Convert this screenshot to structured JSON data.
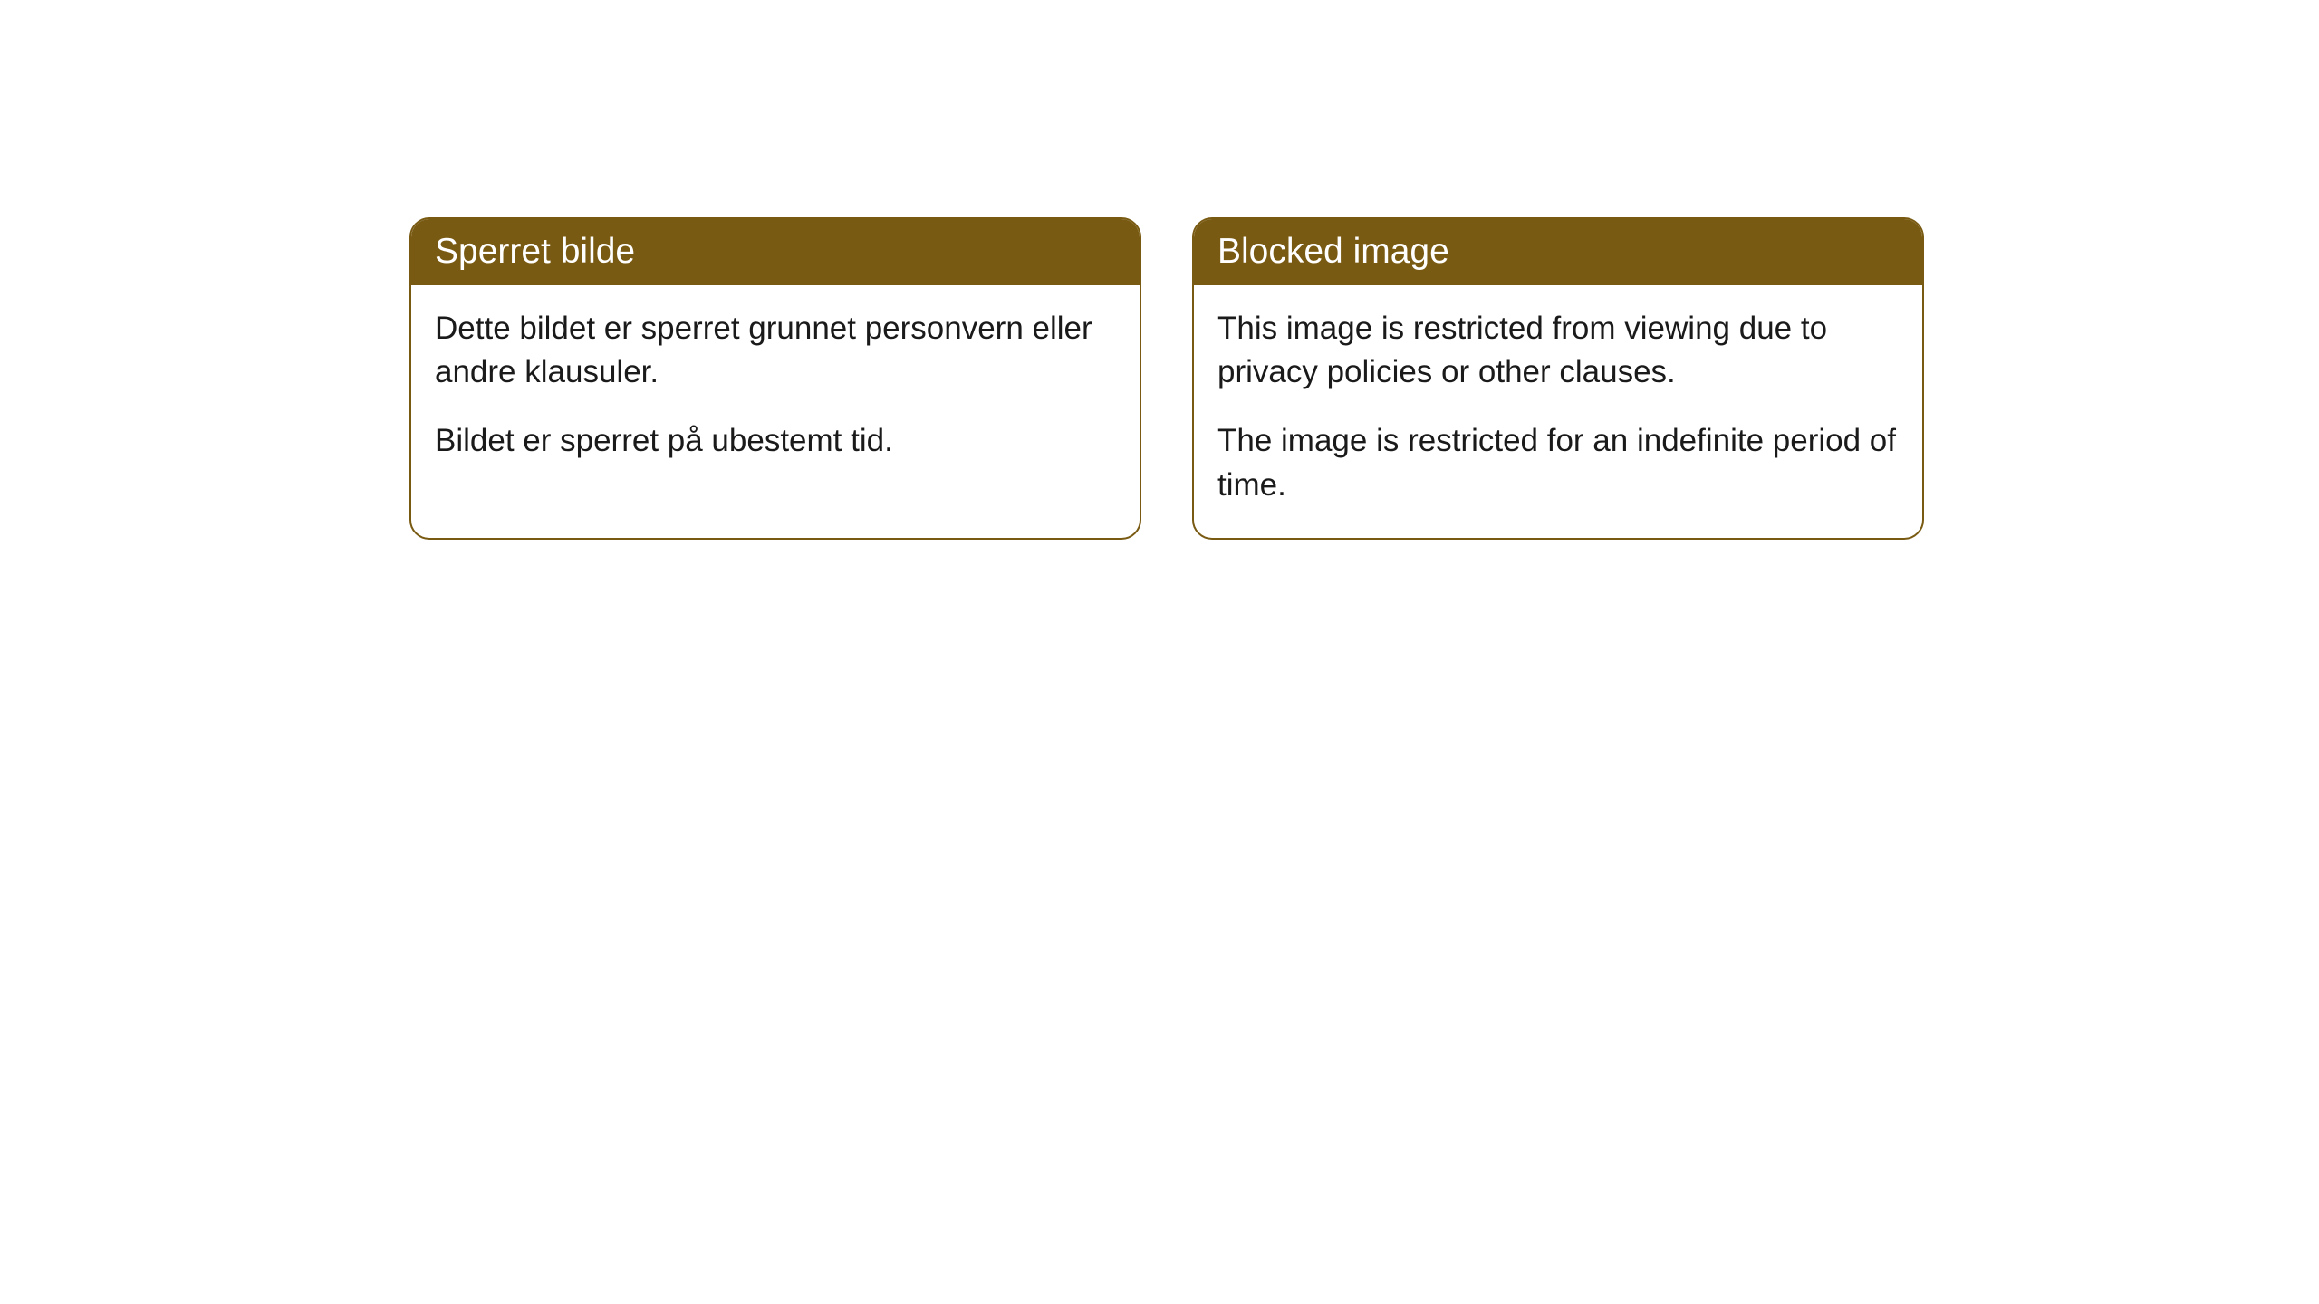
{
  "cards": [
    {
      "title": "Sperret bilde",
      "paragraph1": "Dette bildet er sperret grunnet personvern eller andre klausuler.",
      "paragraph2": "Bildet er sperret på ubestemt tid."
    },
    {
      "title": "Blocked image",
      "paragraph1": "This image is restricted from viewing due to privacy policies or other clauses.",
      "paragraph2": "The image is restricted for an indefinite period of time."
    }
  ],
  "styling": {
    "header_background": "#795a12",
    "header_text_color": "#ffffff",
    "body_text_color": "#1a1a1a",
    "border_color": "#795a12",
    "card_background": "#ffffff",
    "page_background": "#ffffff",
    "border_radius": 22,
    "header_fontsize": 39,
    "body_fontsize": 35
  }
}
